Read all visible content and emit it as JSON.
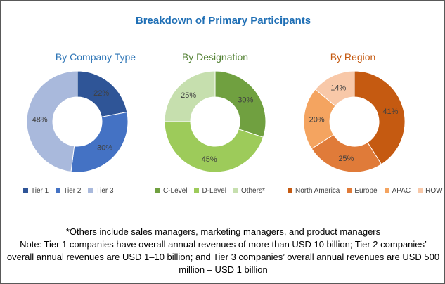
{
  "title": "Breakdown of Primary Participants",
  "chart_data": [
    {
      "type": "pie",
      "donut": true,
      "title": "By Company Type",
      "title_color": "#2e75b6",
      "labels": [
        "Tier 1",
        "Tier 2",
        "Tier 3"
      ],
      "values": [
        22,
        30,
        48
      ],
      "value_labels": [
        "22%",
        "30%",
        "48%"
      ],
      "colors": [
        "#2f5597",
        "#4472c4",
        "#a9b9dc"
      ],
      "legend": "bottom"
    },
    {
      "type": "pie",
      "donut": true,
      "title": "By Designation",
      "title_color": "#548235",
      "labels": [
        "C-Level",
        "D-Level",
        "Others*"
      ],
      "values": [
        30,
        45,
        25
      ],
      "value_labels": [
        "30%",
        "45%",
        "25%"
      ],
      "colors": [
        "#70a040",
        "#9dcb5a",
        "#c6dfae"
      ],
      "legend": "bottom"
    },
    {
      "type": "pie",
      "donut": true,
      "title": "By Region",
      "title_color": "#c55a11",
      "labels": [
        "North America",
        "Europe",
        "APAC",
        "ROW"
      ],
      "values": [
        41,
        25,
        20,
        14
      ],
      "value_labels": [
        "41%",
        "25%",
        "20%",
        "14%"
      ],
      "colors": [
        "#c55a11",
        "#e07b39",
        "#f4a460",
        "#f8c8a8"
      ],
      "legend": "bottom"
    }
  ],
  "footnotes": {
    "others": "*Others include sales managers, marketing managers, and product managers",
    "note": "Note: Tier 1 companies have overall annual revenues of more than USD 10 billion; Tier 2 companies’ overall annual revenues are USD 1–10 billion; and Tier 3 companies’ overall annual revenues are USD 500 million – USD 1 billion"
  }
}
